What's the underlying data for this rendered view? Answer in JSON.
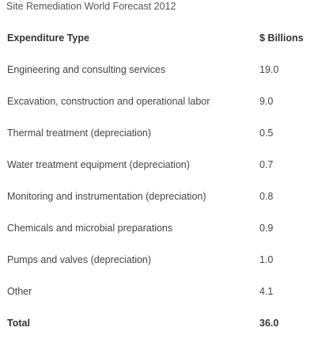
{
  "caption": "Site Remediation World Forecast 2012",
  "table": {
    "headers": [
      "Expenditure Type",
      "$ Billions"
    ],
    "rows": [
      {
        "type": "Engineering and consulting services",
        "value": "19.0"
      },
      {
        "type": "Excavation, construction and operational labor",
        "value": "9.0"
      },
      {
        "type": "Thermal treatment (depreciation)",
        "value": "0.5"
      },
      {
        "type": "Water treatment equipment (depreciation)",
        "value": "0.7"
      },
      {
        "type": "Monitoring and instrumentation (depreciation)",
        "value": "0.8"
      },
      {
        "type": "Chemicals and microbial preparations",
        "value": "0.9"
      },
      {
        "type": "Pumps and valves (depreciation)",
        "value": "1.0"
      },
      {
        "type": "Other",
        "value": "4.1"
      }
    ],
    "total": {
      "label": "Total",
      "value": "36.0"
    }
  }
}
